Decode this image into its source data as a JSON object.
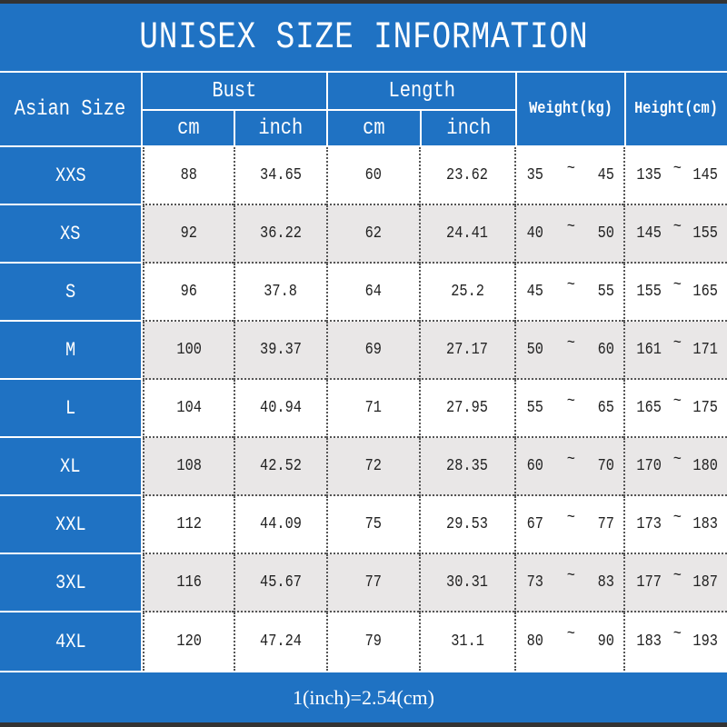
{
  "title": "UNISEX SIZE INFORMATION",
  "headers": {
    "size": "Asian Size",
    "bust": "Bust",
    "length": "Length",
    "weight": "Weight(kg)",
    "height": "Height(cm)",
    "cm": "cm",
    "inch": "inch"
  },
  "tilde": "~",
  "rows": [
    {
      "size": "XXS",
      "bust_cm": "88",
      "bust_in": "34.65",
      "len_cm": "60",
      "len_in": "23.62",
      "w_min": "35",
      "w_max": "45",
      "h_min": "135",
      "h_max": "145"
    },
    {
      "size": "XS",
      "bust_cm": "92",
      "bust_in": "36.22",
      "len_cm": "62",
      "len_in": "24.41",
      "w_min": "40",
      "w_max": "50",
      "h_min": "145",
      "h_max": "155"
    },
    {
      "size": "S",
      "bust_cm": "96",
      "bust_in": "37.8",
      "len_cm": "64",
      "len_in": "25.2",
      "w_min": "45",
      "w_max": "55",
      "h_min": "155",
      "h_max": "165"
    },
    {
      "size": "M",
      "bust_cm": "100",
      "bust_in": "39.37",
      "len_cm": "69",
      "len_in": "27.17",
      "w_min": "50",
      "w_max": "60",
      "h_min": "161",
      "h_max": "171"
    },
    {
      "size": "L",
      "bust_cm": "104",
      "bust_in": "40.94",
      "len_cm": "71",
      "len_in": "27.95",
      "w_min": "55",
      "w_max": "65",
      "h_min": "165",
      "h_max": "175"
    },
    {
      "size": "XL",
      "bust_cm": "108",
      "bust_in": "42.52",
      "len_cm": "72",
      "len_in": "28.35",
      "w_min": "60",
      "w_max": "70",
      "h_min": "170",
      "h_max": "180"
    },
    {
      "size": "XXL",
      "bust_cm": "112",
      "bust_in": "44.09",
      "len_cm": "75",
      "len_in": "29.53",
      "w_min": "67",
      "w_max": "77",
      "h_min": "173",
      "h_max": "183"
    },
    {
      "size": "3XL",
      "bust_cm": "116",
      "bust_in": "45.67",
      "len_cm": "77",
      "len_in": "30.31",
      "w_min": "73",
      "w_max": "83",
      "h_min": "177",
      "h_max": "187"
    },
    {
      "size": "4XL",
      "bust_cm": "120",
      "bust_in": "47.24",
      "len_cm": "79",
      "len_in": "31.1",
      "w_min": "80",
      "w_max": "90",
      "h_min": "183",
      "h_max": "193"
    }
  ],
  "footer": "1(inch)=2.54(cm)",
  "colors": {
    "header_blue": "#1f72c3",
    "alt_row": "#e9e7e7"
  }
}
